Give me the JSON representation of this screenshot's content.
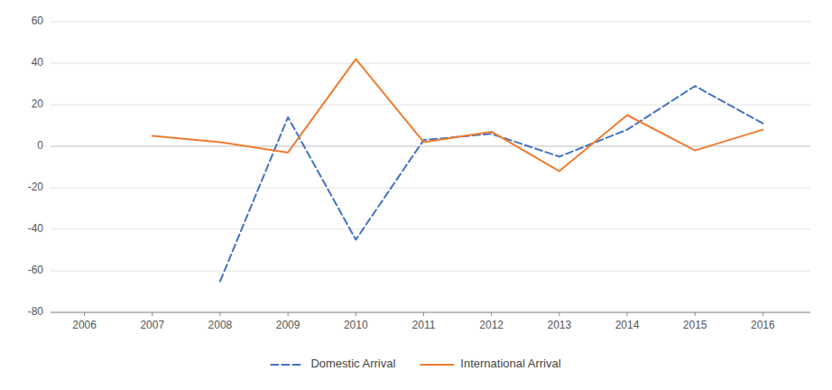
{
  "chart_data": {
    "type": "line",
    "x": [
      2006,
      2007,
      2008,
      2009,
      2010,
      2011,
      2012,
      2013,
      2014,
      2015,
      2016
    ],
    "xlim": [
      2005.5,
      2016.7
    ],
    "xticks": [
      2006,
      2007,
      2008,
      2009,
      2010,
      2011,
      2012,
      2013,
      2014,
      2015,
      2016
    ],
    "ylim": [
      -80,
      60
    ],
    "yticks": [
      -80,
      -60,
      -40,
      -20,
      0,
      20,
      40,
      60
    ],
    "grid": true,
    "legend": "bottom",
    "series": [
      {
        "name": "Domestic Arrival",
        "color": "#4472C4",
        "line_style": "dashed",
        "values": [
          null,
          null,
          -65,
          14,
          -45,
          3,
          6,
          -5,
          8,
          29,
          11
        ]
      },
      {
        "name": "International Arrival",
        "color": "#ED7D31",
        "line_style": "solid",
        "values": [
          null,
          5,
          2,
          -3,
          42,
          2,
          7,
          -12,
          15,
          -2,
          8
        ]
      }
    ]
  }
}
